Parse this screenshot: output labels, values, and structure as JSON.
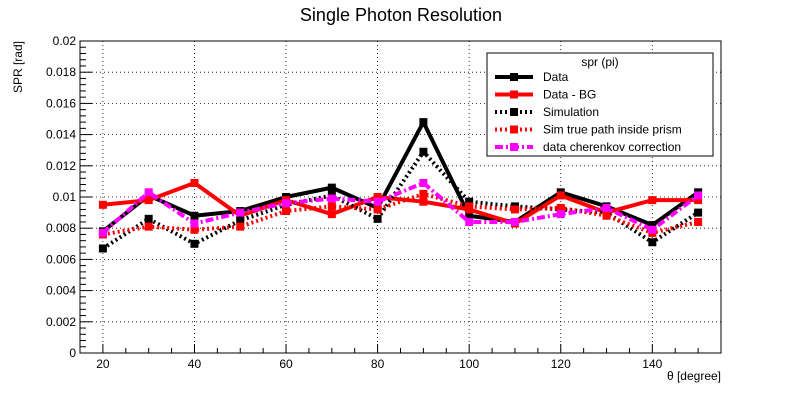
{
  "chart_data": {
    "type": "line",
    "title": "Single Photon Resolution",
    "xlabel": "θ [degree]",
    "ylabel": "SPR [rad]",
    "xlim": [
      15,
      155
    ],
    "ylim": [
      0,
      0.02
    ],
    "grid": true,
    "legend_placement": "top-right",
    "legend_title": "spr (pi)",
    "x": [
      20,
      30,
      40,
      50,
      60,
      70,
      80,
      90,
      100,
      110,
      120,
      130,
      140,
      150
    ],
    "x_ticks": [
      "20",
      "40",
      "60",
      "80",
      "100",
      "120",
      "140"
    ],
    "y_ticks": [
      "0",
      "0.002",
      "0.004",
      "0.006",
      "0.008",
      "0.01",
      "0.012",
      "0.014",
      "0.016",
      "0.018",
      "0.02"
    ],
    "series": [
      {
        "name": "Data",
        "color": "#000000",
        "style": "solid",
        "values": [
          0.0078,
          0.0101,
          0.0088,
          0.0091,
          0.01,
          0.0106,
          0.0093,
          0.0148,
          0.0088,
          0.0084,
          0.0103,
          0.0094,
          0.0082,
          0.0103
        ]
      },
      {
        "name": "Data - BG",
        "color": "#ff0000",
        "style": "solid",
        "values": [
          0.0095,
          0.0098,
          0.0109,
          0.0088,
          0.0098,
          0.0089,
          0.01,
          0.0097,
          0.0092,
          0.0083,
          0.0101,
          0.009,
          0.0098,
          0.0098
        ]
      },
      {
        "name": "Simulation",
        "color": "#000000",
        "style": "dotted",
        "values": [
          0.0067,
          0.0086,
          0.007,
          0.0085,
          0.0095,
          0.0101,
          0.0086,
          0.0129,
          0.0097,
          0.0094,
          0.0092,
          0.009,
          0.0071,
          0.009
        ]
      },
      {
        "name": "Sim true path inside prism",
        "color": "#ff0000",
        "style": "dotted",
        "values": [
          0.0076,
          0.0081,
          0.0079,
          0.0081,
          0.0091,
          0.0094,
          0.0092,
          0.0102,
          0.0094,
          0.0092,
          0.0093,
          0.0088,
          0.0077,
          0.0084
        ]
      },
      {
        "name": "data cherenkov correction",
        "color": "#ff00ff",
        "style": "dashdot",
        "values": [
          0.0077,
          0.0103,
          0.0083,
          0.009,
          0.0096,
          0.0099,
          0.0097,
          0.0109,
          0.0084,
          0.0084,
          0.0089,
          0.0093,
          0.0079,
          0.0101
        ]
      }
    ]
  }
}
